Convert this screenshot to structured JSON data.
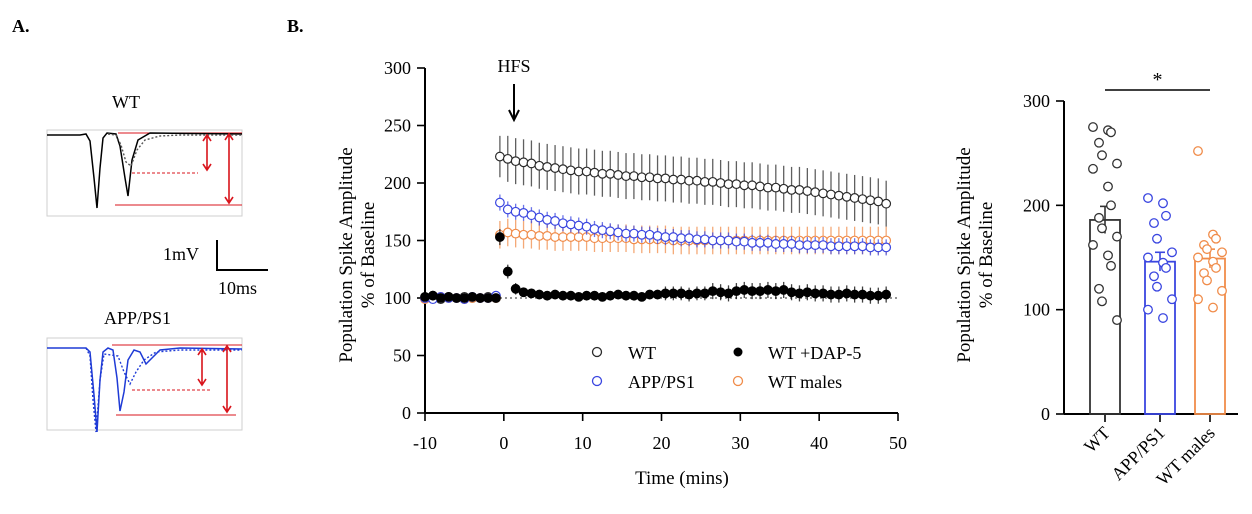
{
  "panel_a": {
    "label": "A.",
    "trace_wt": {
      "title": "WT",
      "color": "#000000"
    },
    "trace_app": {
      "title": "APP/PS1",
      "color": "#1f3bd6"
    },
    "scale_bar": {
      "y_label": "1mV",
      "x_label": "10ms"
    },
    "annotation_color": "#d9141c"
  },
  "panel_b": {
    "label": "B."
  },
  "chart_data": [
    {
      "type": "scatter",
      "ylabel_line1": "Population Spike Amplitude",
      "ylabel_line2": "% of Baseline",
      "xlabel": "Time (mins)",
      "xlim": [
        -10,
        50
      ],
      "ylim": [
        0,
        300
      ],
      "xticks": [
        -10,
        0,
        10,
        20,
        30,
        40,
        50
      ],
      "yticks": [
        0,
        50,
        100,
        150,
        200,
        250,
        300
      ],
      "annotation": {
        "text": "HFS",
        "x": -1
      },
      "baseline_y": 100,
      "legend_placement": "bottom-right",
      "series": [
        {
          "name": "WT",
          "color": "#2a2a2a",
          "filled": false,
          "x": [
            -10,
            -9,
            -8,
            -7,
            -6,
            -5,
            -4,
            -3,
            -2,
            -1,
            -0.5,
            0.5,
            1.5,
            2.5,
            3.5,
            4.5,
            5.5,
            6.5,
            7.5,
            8.5,
            9.5,
            10.5,
            11.5,
            12.5,
            13.5,
            14.5,
            15.5,
            16.5,
            17.5,
            18.5,
            19.5,
            20.5,
            21.5,
            22.5,
            23.5,
            24.5,
            25.5,
            26.5,
            27.5,
            28.5,
            29.5,
            30.5,
            31.5,
            32.5,
            33.5,
            34.5,
            35.5,
            36.5,
            37.5,
            38.5,
            39.5,
            40.5,
            41.5,
            42.5,
            43.5,
            44.5,
            45.5,
            46.5,
            47.5,
            48.5
          ],
          "y": [
            100,
            102,
            99,
            101,
            100,
            101,
            100,
            100,
            101,
            100,
            223,
            221,
            219,
            218,
            217,
            215,
            214,
            213,
            212,
            211,
            210,
            210,
            209,
            208,
            208,
            207,
            206,
            206,
            205,
            205,
            204,
            204,
            203,
            203,
            202,
            202,
            201,
            201,
            200,
            199,
            199,
            198,
            198,
            197,
            196,
            196,
            195,
            194,
            194,
            193,
            192,
            191,
            190,
            189,
            188,
            187,
            186,
            185,
            184,
            182
          ],
          "err": [
            3,
            3,
            3,
            3,
            3,
            3,
            3,
            3,
            3,
            3,
            18,
            20,
            20,
            20,
            20,
            20,
            20,
            20,
            20,
            20,
            20,
            20,
            20,
            20,
            20,
            20,
            20,
            20,
            20,
            20,
            20,
            20,
            20,
            20,
            20,
            20,
            20,
            20,
            20,
            20,
            20,
            20,
            20,
            20,
            20,
            20,
            20,
            20,
            20,
            20,
            20,
            20,
            20,
            20,
            20,
            20,
            20,
            20,
            20,
            20
          ]
        },
        {
          "name": "APP/PS1",
          "color": "#3a46e0",
          "filled": false,
          "x": [
            -10,
            -9,
            -8,
            -7,
            -6,
            -5,
            -4,
            -3,
            -2,
            -1,
            -0.5,
            0.5,
            1.5,
            2.5,
            3.5,
            4.5,
            5.5,
            6.5,
            7.5,
            8.5,
            9.5,
            10.5,
            11.5,
            12.5,
            13.5,
            14.5,
            15.5,
            16.5,
            17.5,
            18.5,
            19.5,
            20.5,
            21.5,
            22.5,
            23.5,
            24.5,
            25.5,
            26.5,
            27.5,
            28.5,
            29.5,
            30.5,
            31.5,
            32.5,
            33.5,
            34.5,
            35.5,
            36.5,
            37.5,
            38.5,
            39.5,
            40.5,
            41.5,
            42.5,
            43.5,
            44.5,
            45.5,
            46.5,
            47.5,
            48.5
          ],
          "y": [
            100,
            99,
            101,
            100,
            100,
            99,
            101,
            100,
            100,
            102,
            183,
            177,
            175,
            174,
            172,
            170,
            168,
            167,
            165,
            164,
            163,
            162,
            160,
            159,
            158,
            157,
            156,
            156,
            155,
            155,
            154,
            153,
            153,
            152,
            152,
            151,
            151,
            150,
            150,
            150,
            149,
            149,
            148,
            148,
            148,
            147,
            147,
            147,
            146,
            146,
            146,
            146,
            145,
            145,
            145,
            145,
            145,
            144,
            144,
            144
          ],
          "err": [
            3,
            3,
            3,
            3,
            3,
            3,
            3,
            3,
            3,
            3,
            7,
            7,
            7,
            7,
            7,
            7,
            7,
            7,
            7,
            7,
            7,
            7,
            7,
            7,
            7,
            7,
            7,
            7,
            7,
            7,
            7,
            7,
            7,
            7,
            7,
            7,
            7,
            7,
            7,
            7,
            7,
            7,
            7,
            7,
            7,
            7,
            7,
            7,
            7,
            7,
            7,
            7,
            7,
            7,
            7,
            7,
            7,
            7,
            7,
            7
          ]
        },
        {
          "name": "WT +DAP-5",
          "color": "#000000",
          "filled": true,
          "x": [
            -10,
            -9,
            -8,
            -7,
            -6,
            -5,
            -4,
            -3,
            -2,
            -1,
            -0.5,
            0.5,
            1.5,
            2.5,
            3.5,
            4.5,
            5.5,
            6.5,
            7.5,
            8.5,
            9.5,
            10.5,
            11.5,
            12.5,
            13.5,
            14.5,
            15.5,
            16.5,
            17.5,
            18.5,
            19.5,
            20.5,
            21.5,
            22.5,
            23.5,
            24.5,
            25.5,
            26.5,
            27.5,
            28.5,
            29.5,
            30.5,
            31.5,
            32.5,
            33.5,
            34.5,
            35.5,
            36.5,
            37.5,
            38.5,
            39.5,
            40.5,
            41.5,
            42.5,
            43.5,
            44.5,
            45.5,
            46.5,
            47.5,
            48.5
          ],
          "y": [
            101,
            102,
            100,
            101,
            100,
            100,
            101,
            100,
            100,
            100,
            153,
            123,
            108,
            105,
            104,
            103,
            102,
            103,
            102,
            102,
            101,
            102,
            102,
            101,
            102,
            103,
            102,
            102,
            101,
            103,
            103,
            104,
            104,
            104,
            103,
            104,
            104,
            106,
            105,
            104,
            106,
            107,
            106,
            106,
            107,
            106,
            107,
            105,
            104,
            105,
            104,
            104,
            103,
            103,
            104,
            103,
            103,
            102,
            102,
            103
          ],
          "err": [
            3,
            3,
            3,
            3,
            3,
            3,
            3,
            3,
            3,
            3,
            7,
            6,
            5,
            4,
            4,
            4,
            4,
            4,
            4,
            4,
            4,
            4,
            4,
            4,
            4,
            4,
            4,
            4,
            4,
            4,
            4,
            6,
            6,
            6,
            6,
            6,
            6,
            7,
            7,
            7,
            7,
            7,
            7,
            7,
            7,
            7,
            7,
            7,
            7,
            7,
            7,
            7,
            7,
            7,
            7,
            7,
            7,
            7,
            7,
            7
          ]
        },
        {
          "name": "WT males",
          "color": "#f08c4a",
          "filled": false,
          "x": [
            -10,
            -9,
            -8,
            -7,
            -6,
            -5,
            -4,
            -3,
            -2,
            -1,
            -0.5,
            0.5,
            1.5,
            2.5,
            3.5,
            4.5,
            5.5,
            6.5,
            7.5,
            8.5,
            9.5,
            10.5,
            11.5,
            12.5,
            13.5,
            14.5,
            15.5,
            16.5,
            17.5,
            18.5,
            19.5,
            20.5,
            21.5,
            22.5,
            23.5,
            24.5,
            25.5,
            26.5,
            27.5,
            28.5,
            29.5,
            30.5,
            31.5,
            32.5,
            33.5,
            34.5,
            35.5,
            36.5,
            37.5,
            38.5,
            39.5,
            40.5,
            41.5,
            42.5,
            43.5,
            44.5,
            45.5,
            46.5,
            47.5,
            48.5
          ],
          "y": [
            99,
            100,
            101,
            100,
            100,
            99,
            100,
            100,
            100,
            100,
            155,
            157,
            156,
            155,
            155,
            154,
            154,
            153,
            153,
            153,
            153,
            153,
            152,
            152,
            152,
            152,
            152,
            151,
            151,
            151,
            151,
            151,
            150,
            150,
            150,
            150,
            150,
            150,
            150,
            150,
            150,
            150,
            150,
            150,
            150,
            150,
            150,
            150,
            150,
            150,
            150,
            150,
            150,
            150,
            150,
            150,
            150,
            150,
            150,
            150
          ],
          "err": [
            3,
            3,
            3,
            3,
            3,
            3,
            3,
            3,
            3,
            3,
            12,
            12,
            12,
            12,
            12,
            12,
            12,
            12,
            12,
            12,
            12,
            12,
            12,
            12,
            12,
            12,
            12,
            12,
            12,
            12,
            12,
            12,
            12,
            12,
            12,
            12,
            12,
            12,
            12,
            12,
            12,
            12,
            12,
            12,
            12,
            12,
            12,
            12,
            12,
            12,
            12,
            12,
            12,
            12,
            12,
            12,
            12,
            12,
            12,
            12
          ]
        }
      ]
    },
    {
      "type": "bar",
      "ylabel_line1": "Population Spike Amplitude",
      "ylabel_line2": "% of Baseline",
      "categories": [
        "WT",
        "APP/PS1",
        "WT males"
      ],
      "colors": [
        "#333333",
        "#3a46e0",
        "#f08c4a"
      ],
      "values": [
        186,
        146,
        149
      ],
      "sem": [
        13,
        9,
        9
      ],
      "ylim": [
        0,
        300
      ],
      "yticks": [
        0,
        100,
        200,
        300
      ],
      "points": [
        [
          275,
          272,
          270,
          260,
          248,
          240,
          235,
          218,
          200,
          188,
          178,
          170,
          162,
          152,
          142,
          120,
          108,
          90
        ],
        [
          207,
          202,
          190,
          183,
          168,
          155,
          150,
          145,
          140,
          132,
          122,
          110,
          100,
          92
        ],
        [
          252,
          172,
          168,
          162,
          158,
          155,
          150,
          146,
          140,
          135,
          128,
          118,
          110,
          102
        ]
      ],
      "significance": {
        "text": "*",
        "from": 0,
        "to": 2
      }
    }
  ]
}
